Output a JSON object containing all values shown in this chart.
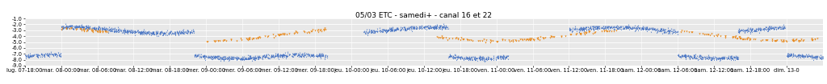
{
  "title": "05/03 ETC - samedi+ - canal 16 et 22",
  "ylim": [
    -9.0,
    -1.0
  ],
  "yticks": [
    -1.0,
    -2.0,
    -3.0,
    -4.0,
    -5.0,
    -6.0,
    -7.0,
    -8.0,
    -9.0
  ],
  "color_blue": "#4472c4",
  "color_orange": "#e8891a",
  "bg_color": "#e8e8e8",
  "title_fontsize": 6.5,
  "tick_fontsize": 4.8,
  "x_tick_labels": [
    "lug. 07-18:00",
    "mar. 08-00:00",
    "mar. 08-06:00",
    "mar. 08-12:00",
    "mar. 08-18:00",
    "mer. 09-00:00",
    "mer. 09-06:00",
    "mer. 09-12:00",
    "mer. 09-18:00",
    "jeu. 10-00:00",
    "jeu. 10-06:00",
    "jeu. 10-12:00",
    "jeu. 10-18:00",
    "ven. 11-00:00",
    "ven. 11-06:00",
    "ven. 11-12:00",
    "ven. 11-18:00",
    "sam. 12-00:00",
    "sam. 12-06:00",
    "sam. 12-12:00",
    "sam. 12-18:00",
    "dim. 13-0"
  ],
  "x_tick_hours": [
    0,
    6,
    12,
    18,
    24,
    30,
    36,
    42,
    48,
    54,
    60,
    66,
    72,
    78,
    84,
    90,
    96,
    102,
    108,
    114,
    120,
    126
  ],
  "total_hours": 132
}
